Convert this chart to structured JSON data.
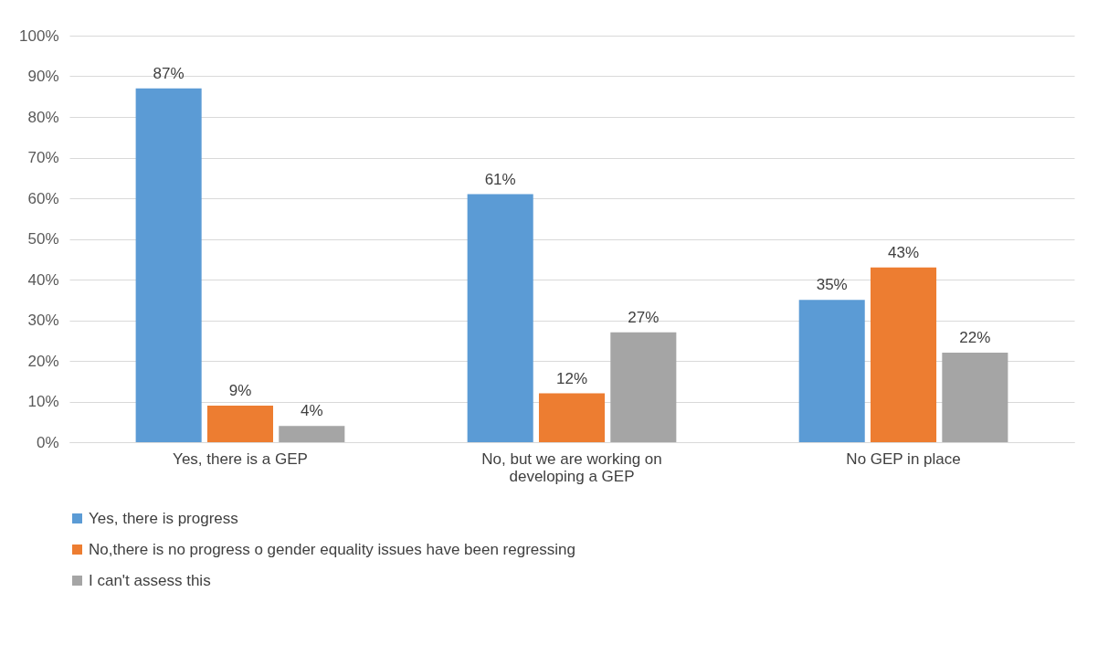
{
  "chart_data": {
    "type": "bar",
    "categories": [
      "Yes, there is a GEP",
      "No, but we are working on developing a GEP",
      "No GEP in place"
    ],
    "series": [
      {
        "name": "Yes, there is progress",
        "color": "#5b9bd5",
        "values": [
          87,
          61,
          35
        ],
        "value_labels": [
          "87%",
          "61%",
          "35%"
        ]
      },
      {
        "name": "No,there is no progress o gender equality issues have been regressing",
        "color": "#ed7d31",
        "values": [
          9,
          12,
          43
        ],
        "value_labels": [
          "9%",
          "12%",
          "43%"
        ]
      },
      {
        "name": "I can't assess this",
        "color": "#a5a5a5",
        "values": [
          4,
          27,
          22
        ],
        "value_labels": [
          "4%",
          "27%",
          "22%"
        ]
      }
    ],
    "ylim": [
      0,
      100
    ],
    "yticks": [
      {
        "value": 0,
        "label": "0%"
      },
      {
        "value": 10,
        "label": "10%"
      },
      {
        "value": 20,
        "label": "20%"
      },
      {
        "value": 30,
        "label": "30%"
      },
      {
        "value": 40,
        "label": "40%"
      },
      {
        "value": 50,
        "label": "50%"
      },
      {
        "value": 60,
        "label": "60%"
      },
      {
        "value": 70,
        "label": "70%"
      },
      {
        "value": 80,
        "label": "80%"
      },
      {
        "value": 90,
        "label": "90%"
      },
      {
        "value": 100,
        "label": "100%"
      }
    ],
    "grid": "y",
    "legend": "bottom"
  }
}
